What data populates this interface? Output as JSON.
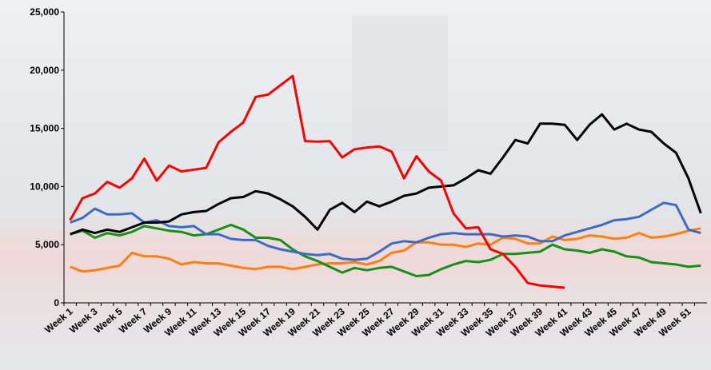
{
  "chart_data": {
    "type": "line",
    "categories": [
      "Week 1",
      null,
      "Week 3",
      null,
      "Week 5",
      null,
      "Week 7",
      null,
      "Week 9",
      null,
      "Week 11",
      null,
      "Week 13",
      null,
      "Week 15",
      null,
      "Week 17",
      null,
      "Week 19",
      null,
      "Week 21",
      null,
      "Week 23",
      null,
      "Week 25",
      null,
      "Week 27",
      null,
      "Week 29",
      null,
      "Week 31",
      null,
      "Week 33",
      null,
      "Week 35",
      null,
      "Week 37",
      null,
      "Week 39",
      null,
      "Week 41",
      null,
      "Week 43",
      null,
      "Week 45",
      null,
      "Week 47",
      null,
      "Week 49",
      null,
      "Week 51",
      null
    ],
    "ylim": [
      0,
      25000
    ],
    "yticks": [
      0,
      {
        "value": 5000,
        "label": "5,000"
      },
      {
        "value": 10000,
        "label": "10,000"
      },
      {
        "value": 15000,
        "label": "15,000"
      },
      {
        "value": 20000,
        "label": "20,000"
      },
      {
        "value": 25000,
        "label": "25,000"
      }
    ],
    "series": [
      {
        "color": "#ff7f0e",
        "values": [
          3100,
          2700,
          2800,
          3000,
          3200,
          4300,
          4000,
          4000,
          3800,
          3300,
          3500,
          3400,
          3400,
          3200,
          3000,
          2900,
          3100,
          3100,
          2900,
          3100,
          3300,
          3400,
          3400,
          3500,
          3300,
          3600,
          4300,
          4500,
          5200,
          5200,
          5000,
          5000,
          4800,
          5100,
          5000,
          5600,
          5500,
          5100,
          5100,
          5700,
          5400,
          5500,
          5800,
          5700,
          5500,
          5600,
          6000,
          5600,
          5700,
          5900,
          6200,
          6400
        ]
      },
      {
        "color": "#169016",
        "values": [
          5900,
          6200,
          5600,
          6000,
          5800,
          6100,
          6600,
          6400,
          6200,
          6100,
          5800,
          5900,
          6300,
          6700,
          6300,
          5600,
          5600,
          5400,
          4600,
          4000,
          3600,
          3100,
          2600,
          3000,
          2800,
          3000,
          3100,
          2700,
          2300,
          2400,
          2900,
          3300,
          3600,
          3500,
          3700,
          4200,
          4200,
          4300,
          4400,
          5000,
          4600,
          4500,
          4300,
          4600,
          4400,
          4000,
          3900,
          3500,
          3400,
          3300,
          3100,
          3200
        ]
      },
      {
        "color": "#3a6cc6",
        "values": [
          6900,
          7300,
          8100,
          7600,
          7600,
          7700,
          6900,
          7100,
          6600,
          6500,
          6600,
          5900,
          5900,
          5500,
          5400,
          5400,
          4900,
          4600,
          4400,
          4200,
          4100,
          4200,
          3800,
          3700,
          3800,
          4400,
          5100,
          5300,
          5200,
          5600,
          5900,
          6000,
          5900,
          5900,
          5900,
          5700,
          5800,
          5700,
          5300,
          5300,
          5800,
          6100,
          6400,
          6700,
          7100,
          7200,
          7400,
          8000,
          8600,
          8400,
          6300,
          6000
        ]
      },
      {
        "color": "#000000",
        "values": [
          5900,
          6300,
          6000,
          6300,
          6100,
          6500,
          6900,
          6900,
          7000,
          7600,
          7800,
          7900,
          8500,
          9000,
          9100,
          9600,
          9400,
          8900,
          8300,
          7400,
          6300,
          8000,
          8600,
          7800,
          8700,
          8300,
          8700,
          9200,
          9400,
          9900,
          10000,
          10100,
          10700,
          11400,
          11100,
          12500,
          14000,
          13700,
          15400,
          15400,
          15300,
          14000,
          15300,
          16200,
          14900,
          15400,
          14900,
          14700,
          13700,
          12900,
          10700,
          7700
        ]
      },
      {
        "color": "#ff0000",
        "values": [
          7100,
          9000,
          9400,
          10400,
          9900,
          10700,
          12400,
          10500,
          11800,
          11300,
          11450,
          11600,
          13800,
          14700,
          15500,
          17700,
          17900,
          18700,
          19500,
          13900,
          13850,
          13900,
          12500,
          13200,
          13350,
          13450,
          13000,
          10700,
          12600,
          11300,
          10500,
          7700,
          6400,
          6500,
          4600,
          4200,
          3100,
          1700,
          1500,
          1400,
          1300,
          null,
          null,
          null,
          null,
          null,
          null,
          null,
          null,
          null,
          null,
          null
        ]
      }
    ]
  }
}
